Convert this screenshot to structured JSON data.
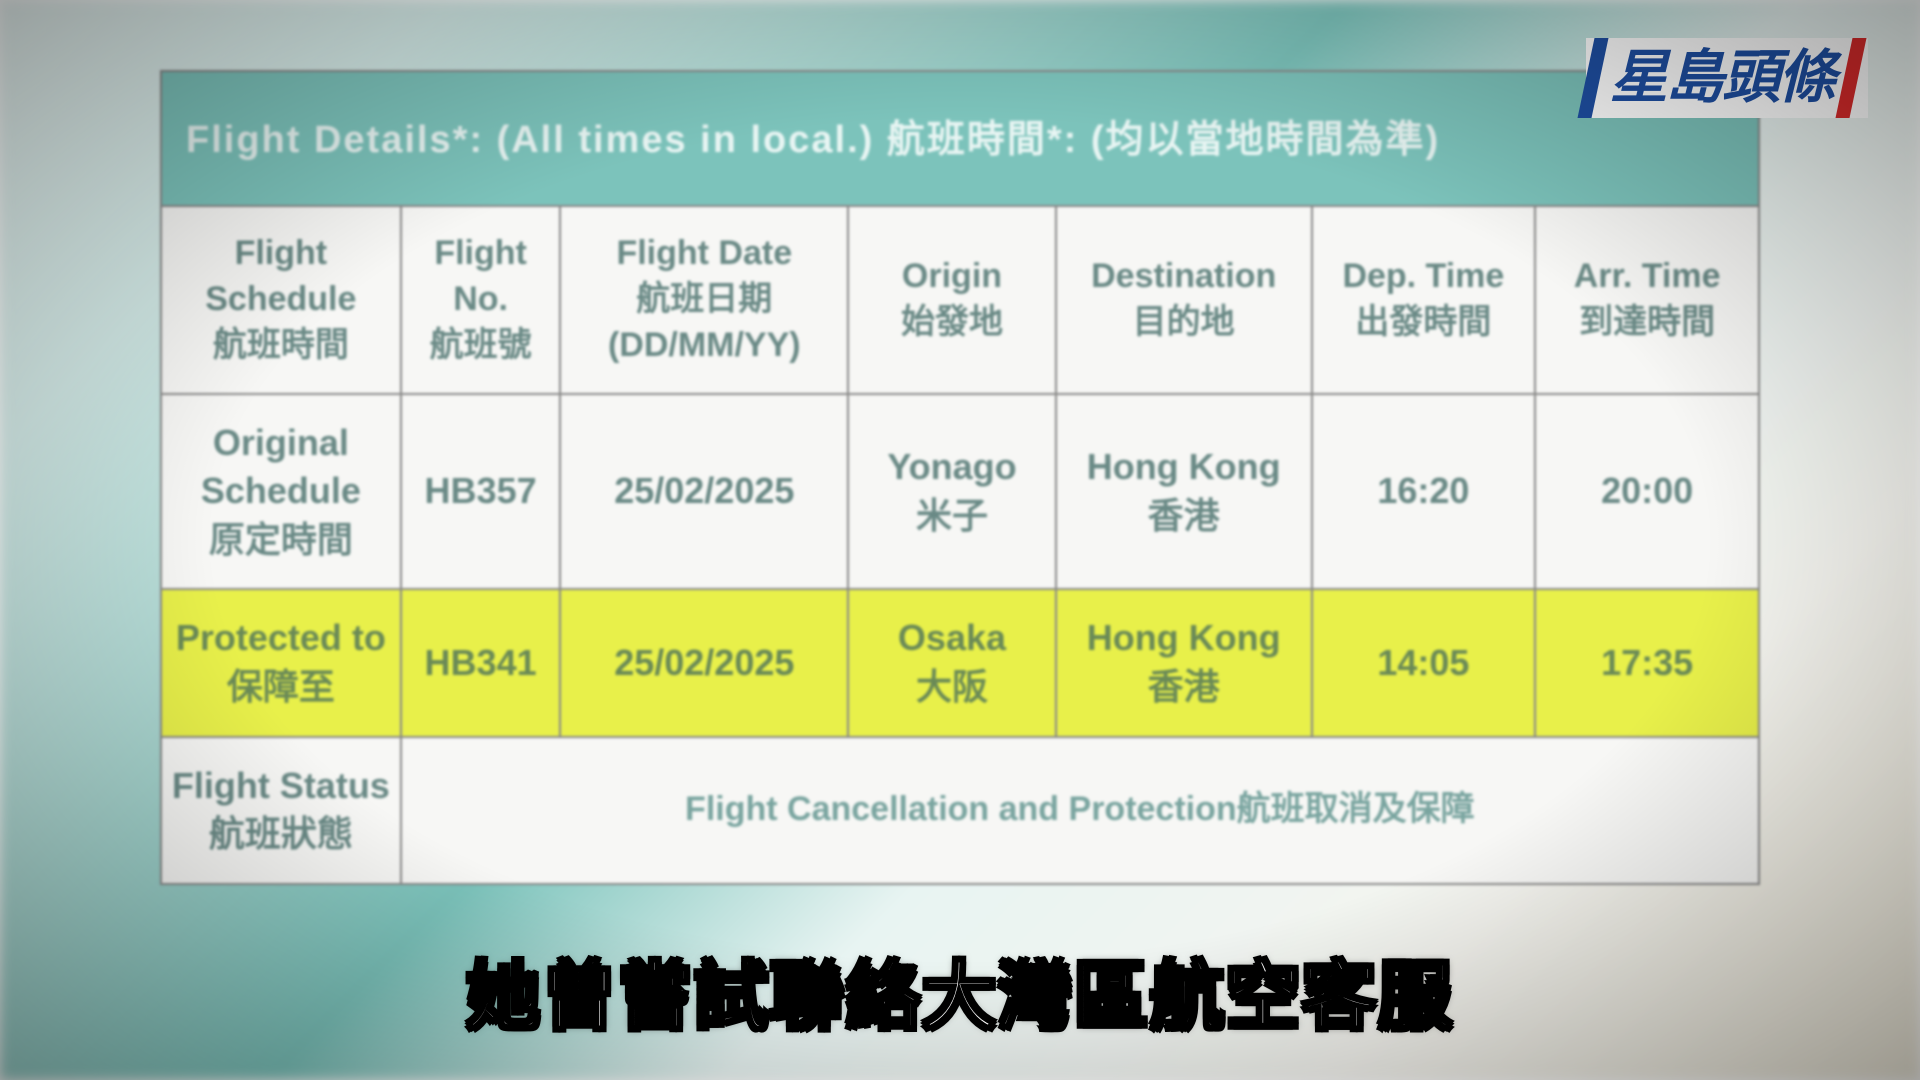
{
  "logo": {
    "text": "星島頭條"
  },
  "title": "Flight Details*: (All times in local.) 航班時間*: (均以當地時間為準)",
  "columns": [
    {
      "en": "Flight Schedule",
      "zh": "航班時間"
    },
    {
      "en": "Flight No.",
      "zh": "航班號"
    },
    {
      "en": "Flight Date",
      "zh": "航班日期",
      "sub": "(DD/MM/YY)"
    },
    {
      "en": "Origin",
      "zh": "始發地"
    },
    {
      "en": "Destination",
      "zh": "目的地"
    },
    {
      "en": "Dep. Time",
      "zh": "出發時間"
    },
    {
      "en": "Arr. Time",
      "zh": "到達時間"
    }
  ],
  "rows": [
    {
      "highlight": false,
      "schedule_en": "Original Schedule",
      "schedule_zh": "原定時間",
      "flight_no": "HB357",
      "date": "25/02/2025",
      "origin_en": "Yonago",
      "origin_zh": "米子",
      "dest_en": "Hong Kong",
      "dest_zh": "香港",
      "dep": "16:20",
      "arr": "20:00"
    },
    {
      "highlight": true,
      "schedule_en": "Protected to",
      "schedule_zh": "保障至",
      "flight_no": "HB341",
      "date": "25/02/2025",
      "origin_en": "Osaka",
      "origin_zh": "大阪",
      "dest_en": "Hong Kong",
      "dest_zh": "香港",
      "dep": "14:05",
      "arr": "17:35"
    }
  ],
  "status": {
    "label_en": "Flight Status",
    "label_zh": "航班狀態",
    "text": "Flight Cancellation and Protection航班取消及保障"
  },
  "subtitle": "她曾嘗試聯絡大灣區航空客服",
  "colors": {
    "header_bg": "#7cc3bb",
    "highlight_bg": "#e8f04a",
    "border": "#888888",
    "text": "#6a8a86",
    "logo_blue": "#1e4fa3",
    "logo_red": "#d92b2b"
  }
}
